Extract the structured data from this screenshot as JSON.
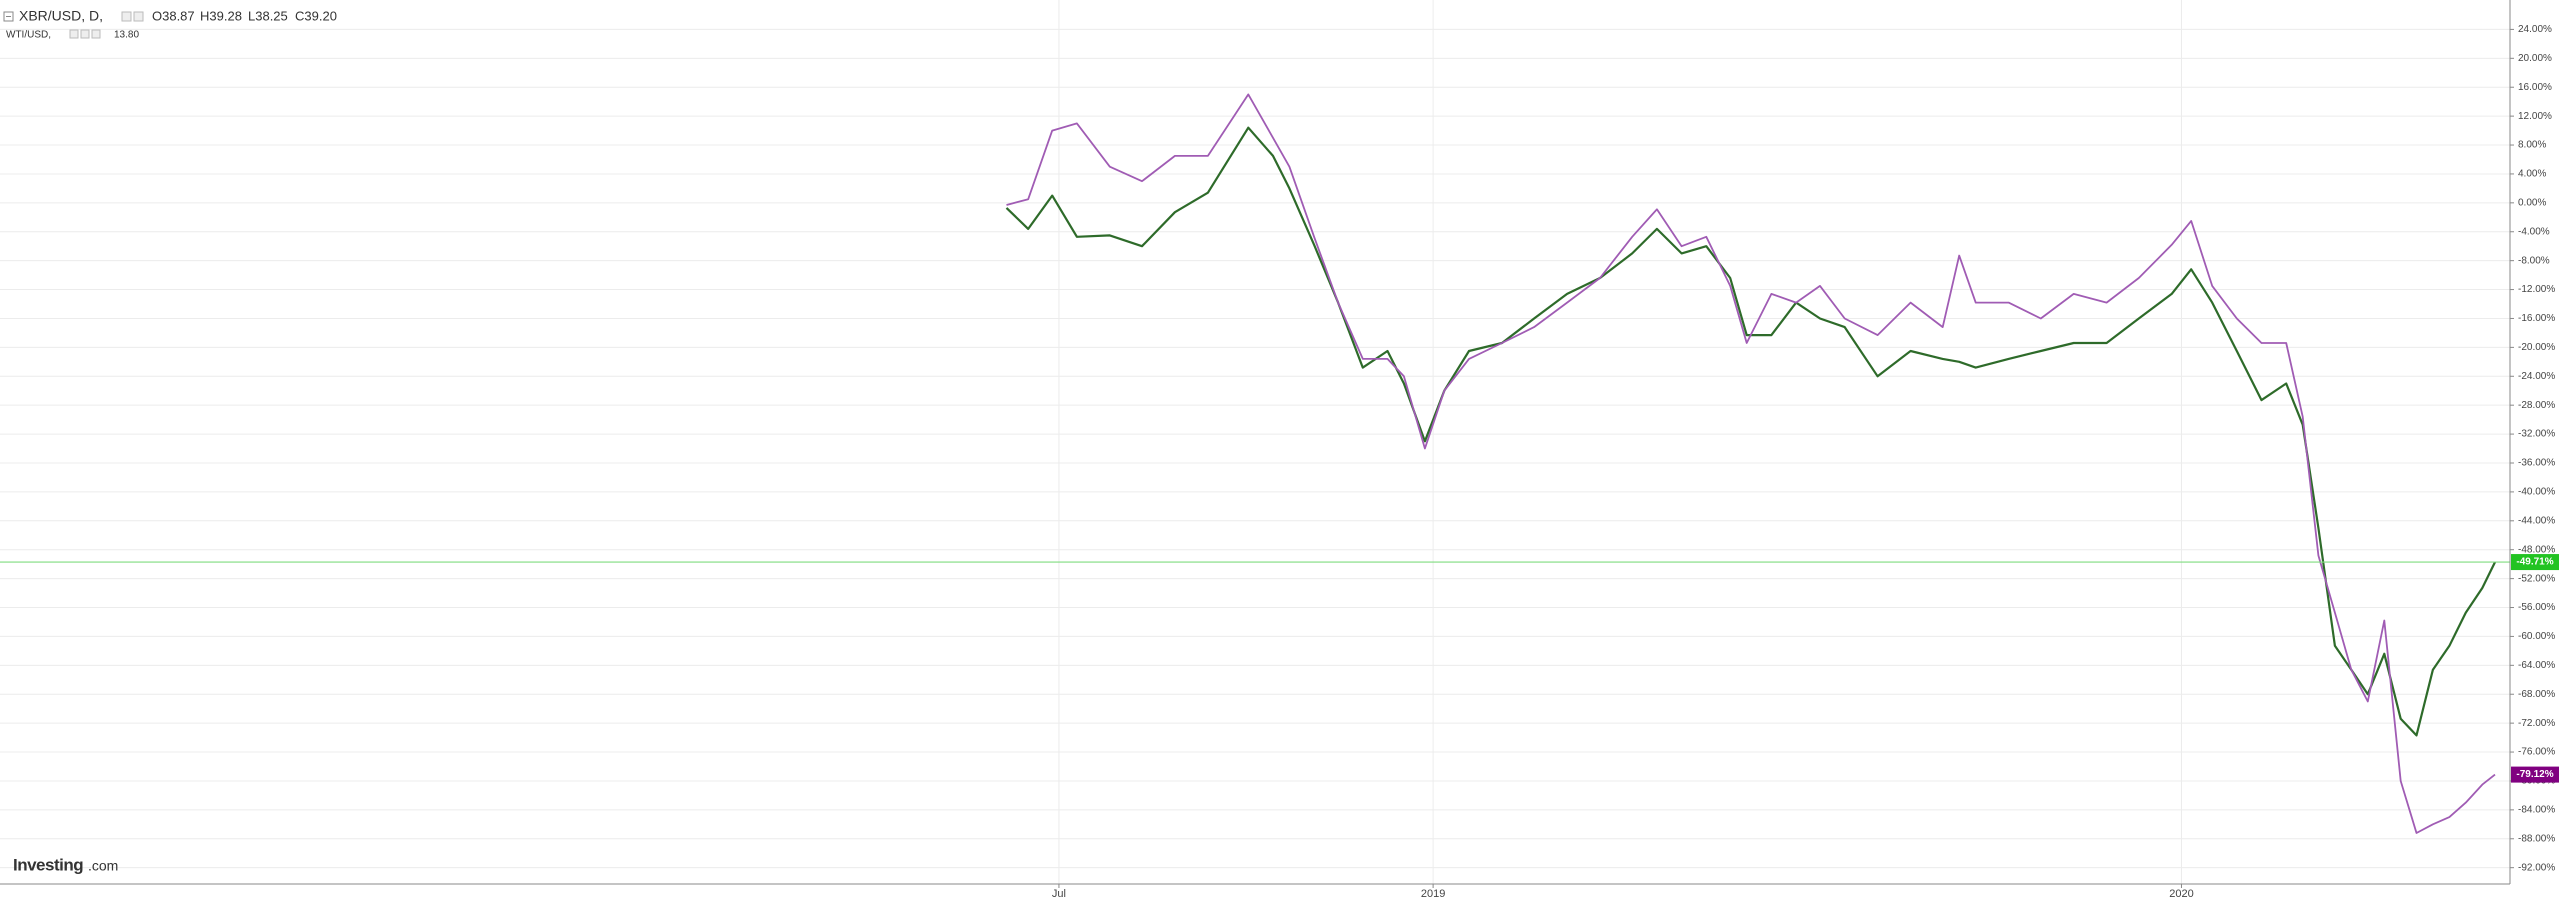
{
  "header": {
    "ohlc": [
      "O38.87",
      "H39.28",
      "L38.25",
      "C39.20"
    ],
    "compare_value": "13.80"
  },
  "logo": {
    "brand": "Investing",
    "suffix": ".com"
  },
  "chart_data": {
    "type": "line",
    "x": [
      2018.43,
      2018.459,
      2018.491,
      2018.524,
      2018.568,
      2018.611,
      2018.655,
      2018.699,
      2018.753,
      2018.786,
      2018.808,
      2018.841,
      2018.873,
      2018.906,
      2018.939,
      2018.961,
      2018.989,
      2019.015,
      2019.048,
      2019.092,
      2019.135,
      2019.179,
      2019.223,
      2019.266,
      2019.299,
      2019.332,
      2019.365,
      2019.397,
      2019.419,
      2019.452,
      2019.485,
      2019.517,
      2019.55,
      2019.594,
      2019.638,
      2019.681,
      2019.703,
      2019.725,
      2019.769,
      2019.812,
      2019.856,
      2019.9,
      2019.943,
      2019.987,
      2020.013,
      2020.041,
      2020.074,
      2020.107,
      2020.14,
      2020.162,
      2020.183,
      2020.205,
      2020.227,
      2020.249,
      2020.271,
      2020.293,
      2020.314,
      2020.336,
      2020.358,
      2020.38,
      2020.402,
      2020.419
    ],
    "series": [
      {
        "name": "XBR/USD, D,",
        "color": "#2e6b2a",
        "last_label": "-49.71%",
        "label_color": "#22c322",
        "values": [
          -0.7,
          -3.6,
          1,
          -4.7,
          -4.5,
          -6,
          -1.3,
          1.4,
          10.4,
          6.5,
          2,
          -5.8,
          -13.8,
          -22.8,
          -20.5,
          -25,
          -33,
          -26,
          -20.5,
          -19.4,
          -16,
          -12.6,
          -10.4,
          -7,
          -3.6,
          -7,
          -6,
          -10.4,
          -18.3,
          -18.3,
          -13.8,
          -16,
          -17.2,
          -24,
          -20.5,
          -21.6,
          -22,
          -22.8,
          -21.6,
          -20.5,
          -19.4,
          -19.4,
          -16,
          -12.6,
          -9.2,
          -13.8,
          -20.5,
          -27.3,
          -25,
          -30.7,
          -45,
          -61.3,
          -64.6,
          -68,
          -62.4,
          -71.4,
          -73.7,
          -64.6,
          -61.3,
          -56.7,
          -53.3,
          -49.71
        ]
      },
      {
        "name": "WTI/USD,",
        "color": "#a05cb4",
        "last_label": "-79.12%",
        "label_color": "#800080",
        "values": [
          -0.3,
          0.5,
          10,
          11,
          5,
          3,
          6.5,
          6.5,
          15,
          9,
          5,
          -4.7,
          -13.8,
          -21.6,
          -21.6,
          -24,
          -34,
          -26,
          -21.6,
          -19.4,
          -17.2,
          -13.8,
          -10.4,
          -4.7,
          -0.9,
          -6,
          -4.7,
          -11.5,
          -19.4,
          -12.6,
          -13.8,
          -11.5,
          -16,
          -18.3,
          -13.8,
          -17.2,
          -7.3,
          -13.8,
          -13.8,
          -16,
          -12.6,
          -13.8,
          -10.4,
          -5.8,
          -2.5,
          -11.5,
          -16,
          -19.4,
          -19.4,
          -29.6,
          -48.8,
          -56.7,
          -64.6,
          -69,
          -57.8,
          -80,
          -87.2,
          -86,
          -85,
          -83,
          -80.5,
          -79.12
        ]
      }
    ],
    "xlim": [
      2017.085,
      2020.439
    ],
    "xticks": [
      {
        "value": 2018.5,
        "label": "Jul"
      },
      2019,
      2020
    ],
    "ylim": [
      -94.26,
      28.07
    ],
    "yticks": [
      {
        "value": 24,
        "label": "24.00%"
      },
      {
        "value": 20,
        "label": "20.00%"
      },
      {
        "value": 16,
        "label": "16.00%"
      },
      {
        "value": 12,
        "label": "12.00%"
      },
      {
        "value": 8,
        "label": "8.00%"
      },
      {
        "value": 4,
        "label": "4.00%"
      },
      {
        "value": 0,
        "label": "0.00%"
      },
      {
        "value": -4,
        "label": "-4.00%"
      },
      {
        "value": -8,
        "label": "-8.00%"
      },
      {
        "value": -12,
        "label": "-12.00%"
      },
      {
        "value": -16,
        "label": "-16.00%"
      },
      {
        "value": -20,
        "label": "-20.00%"
      },
      {
        "value": -24,
        "label": "-24.00%"
      },
      {
        "value": -28,
        "label": "-28.00%"
      },
      {
        "value": -32,
        "label": "-32.00%"
      },
      {
        "value": -36,
        "label": "-36.00%"
      },
      {
        "value": -40,
        "label": "-40.00%"
      },
      {
        "value": -44,
        "label": "-44.00%"
      },
      {
        "value": -48,
        "label": "-48.00%"
      },
      {
        "value": -52,
        "label": "-52.00%"
      },
      {
        "value": -56,
        "label": "-56.00%"
      },
      {
        "value": -60,
        "label": "-60.00%"
      },
      {
        "value": -64,
        "label": "-64.00%"
      },
      {
        "value": -68,
        "label": "-68.00%"
      },
      {
        "value": -72,
        "label": "-72.00%"
      },
      {
        "value": -76,
        "label": "-76.00%"
      },
      {
        "value": -80,
        "label": "-80.00%"
      },
      {
        "value": -84,
        "label": "-84.00%"
      },
      {
        "value": -88,
        "label": "-88.00%"
      },
      {
        "value": -92,
        "label": "-92.00%"
      }
    ],
    "grid": true
  }
}
